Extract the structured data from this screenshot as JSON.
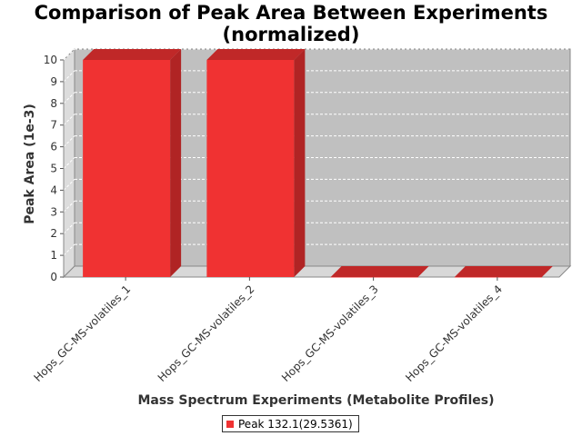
{
  "chart_data": {
    "type": "bar",
    "title_line1": "Comparison of Peak Area Between Experiments",
    "title_line2": "(normalized)",
    "xlabel": "Mass Spectrum Experiments (Metabolite Profiles)",
    "ylabel": "Peak Area (1e-3)",
    "categories": [
      "Hops_GC-MS-volatiles_1",
      "Hops_GC-MS-volatiles_2",
      "Hops_GC-MS-volatiles_3",
      "Hops_GC-MS-volatiles_4"
    ],
    "series": [
      {
        "name": "Peak 132.1(29.5361)",
        "values": [
          10,
          10,
          0,
          0
        ]
      }
    ],
    "ylim": [
      0,
      10
    ],
    "yticks": [
      0,
      1,
      2,
      3,
      4,
      5,
      6,
      7,
      8,
      9,
      10
    ],
    "grid": true,
    "legend_position": "bottom",
    "style": "3d"
  },
  "colors": {
    "bar_front": "#f03232",
    "bar_top": "#c02828",
    "bar_side": "#b02424",
    "plot_background": "#c0c0c0",
    "floor": "#d8d8d8",
    "gridline": "#ffffff"
  }
}
